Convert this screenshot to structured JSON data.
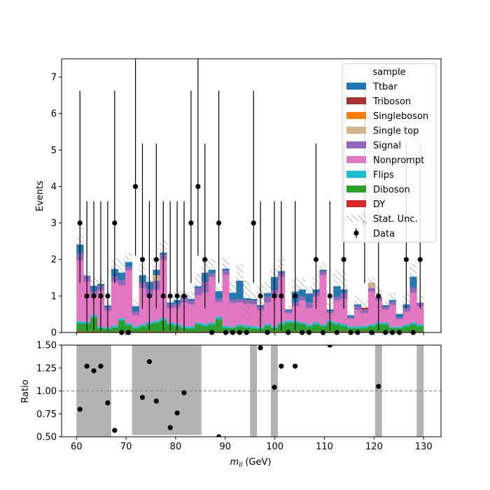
{
  "chart_data": {
    "type": "bar",
    "stacked": true,
    "bin_width": 1.4,
    "x_start": 60,
    "main": {
      "ylabel": "Events",
      "ylim": [
        0,
        7.5
      ],
      "yticks": [
        0,
        1,
        2,
        3,
        4,
        5,
        6,
        7
      ]
    },
    "ratio": {
      "ylabel": "Ratio",
      "ylim": [
        0.5,
        1.5
      ],
      "yticks": [
        "0.50",
        "0.75",
        "1.00",
        "1.25",
        "1.50"
      ],
      "reference_line": 1.0
    },
    "xlabel_main": "m",
    "xlabel_sub": "ll",
    "xlabel_unit": " (GeV)",
    "xlim": [
      57,
      133.5
    ],
    "xticks": [
      60,
      70,
      80,
      90,
      100,
      110,
      120,
      130
    ],
    "legend": {
      "title": "sample",
      "placement": "top-right",
      "entries": [
        {
          "label": "Ttbar",
          "color": "#1f77b4",
          "kind": "patch"
        },
        {
          "label": "Triboson",
          "color": "#a83232",
          "kind": "patch"
        },
        {
          "label": "Singleboson",
          "color": "#ff7f0e",
          "kind": "patch"
        },
        {
          "label": "Single top",
          "color": "#d2b48c",
          "kind": "patch"
        },
        {
          "label": "Signal",
          "color": "#9467bd",
          "kind": "patch"
        },
        {
          "label": "Nonprompt",
          "color": "#e377c2",
          "kind": "patch"
        },
        {
          "label": "Flips",
          "color": "#17becf",
          "kind": "patch"
        },
        {
          "label": "Diboson",
          "color": "#2ca02c",
          "kind": "patch"
        },
        {
          "label": "DY",
          "color": "#d62728",
          "kind": "patch"
        },
        {
          "label": "Stat. Unc.",
          "color": "#777777",
          "kind": "hatch"
        },
        {
          "label": "Data",
          "color": "#000000",
          "kind": "errorbar"
        }
      ]
    },
    "stack_order": [
      "DY",
      "Diboson",
      "Flips",
      "Nonprompt",
      "Signal",
      "Single top",
      "Singleboson",
      "Triboson",
      "Ttbar"
    ],
    "series": [
      {
        "name": "DY",
        "color": "#d62728",
        "values": [
          0.03,
          0.02,
          0.03,
          0.02,
          0.02,
          0.02,
          0.03,
          0.02,
          0.02,
          0.02,
          0.03,
          0.02,
          0.03,
          0.02,
          0.03,
          0.02,
          0.02,
          0.02,
          0.03,
          0.02,
          0.02,
          0.03,
          0.02,
          0.02,
          0.02,
          0.02,
          0.02,
          0.03,
          0.02,
          0.02,
          0.02,
          0.02,
          0.03,
          0.02,
          0.02,
          0.02,
          0.02,
          0.02,
          0.03,
          0.02,
          0.02,
          0.03,
          0.02,
          0.02,
          0.02,
          0.02,
          0.02,
          0.02,
          0.02,
          0.02
        ]
      },
      {
        "name": "Diboson",
        "color": "#2ca02c",
        "values": [
          0.22,
          0.22,
          0.38,
          0.1,
          0.08,
          0.12,
          0.3,
          0.18,
          0.1,
          0.15,
          0.2,
          0.25,
          0.3,
          0.2,
          0.15,
          0.1,
          0.1,
          0.2,
          0.15,
          0.2,
          0.35,
          0.1,
          0.1,
          0.15,
          0.12,
          0.1,
          0.08,
          0.15,
          0.1,
          0.2,
          0.25,
          0.25,
          0.2,
          0.15,
          0.2,
          0.15,
          0.25,
          0.2,
          0.15,
          0.1,
          0.1,
          0.1,
          0.15,
          0.2,
          0.2,
          0.1,
          0.1,
          0.15,
          0.2,
          0.15
        ]
      },
      {
        "name": "Flips",
        "color": "#17becf",
        "values": [
          0.06,
          0.05,
          0.07,
          0.04,
          0.04,
          0.05,
          0.06,
          0.05,
          0.05,
          0.05,
          0.06,
          0.05,
          0.06,
          0.05,
          0.06,
          0.05,
          0.05,
          0.05,
          0.06,
          0.05,
          0.06,
          0.05,
          0.04,
          0.05,
          0.05,
          0.05,
          0.05,
          0.05,
          0.05,
          0.06,
          0.06,
          0.05,
          0.05,
          0.05,
          0.06,
          0.05,
          0.06,
          0.05,
          0.05,
          0.05,
          0.05,
          0.05,
          0.05,
          0.05,
          0.05,
          0.04,
          0.04,
          0.05,
          0.06,
          0.05
        ]
      },
      {
        "name": "Nonprompt",
        "color": "#e377c2",
        "values": [
          1.65,
          1.1,
          0.55,
          1.0,
          0.45,
          1.2,
          0.9,
          1.45,
          0.3,
          1.0,
          0.7,
          0.85,
          1.6,
          0.4,
          0.45,
          0.65,
          0.6,
          0.75,
          0.85,
          1.25,
          0.4,
          1.4,
          0.65,
          0.6,
          0.6,
          0.6,
          0.45,
          0.6,
          0.85,
          1.25,
          0.2,
          0.4,
          0.6,
          0.45,
          0.7,
          1.35,
          0.2,
          0.6,
          0.7,
          0.2,
          0.45,
          0.35,
          0.9,
          0.6,
          0.35,
          0.6,
          0.2,
          0.35,
          0.8,
          0.5
        ]
      },
      {
        "name": "Signal",
        "color": "#9467bd",
        "values": [
          0.2,
          0.15,
          0.1,
          0.12,
          0.1,
          0.15,
          0.15,
          0.1,
          0.1,
          0.15,
          0.2,
          0.25,
          0.15,
          0.1,
          0.1,
          0.15,
          0.1,
          0.2,
          0.3,
          0.1,
          0.1,
          0.12,
          0.08,
          0.1,
          0.1,
          0.1,
          0.1,
          0.15,
          0.15,
          0.1,
          0.05,
          0.1,
          0.1,
          0.15,
          0.1,
          0.1,
          0.05,
          0.1,
          0.15,
          0.05,
          0.1,
          0.1,
          0.1,
          0.1,
          0.08,
          0.08,
          0.05,
          0.1,
          0.15,
          0.1
        ]
      },
      {
        "name": "Single top",
        "color": "#d2b48c",
        "values": [
          0,
          0,
          0,
          0,
          0,
          0,
          0,
          0,
          0,
          0,
          0,
          0.15,
          0,
          0,
          0,
          0,
          0,
          0,
          0,
          0,
          0,
          0,
          0,
          0,
          0,
          0,
          0,
          0,
          0,
          0,
          0,
          0,
          0,
          0,
          0,
          0,
          0,
          0,
          0,
          0,
          0,
          0,
          0.15,
          0,
          0,
          0,
          0,
          0,
          0,
          0
        ]
      },
      {
        "name": "Singleboson",
        "color": "#ff7f0e",
        "values": [
          0,
          0,
          0,
          0,
          0,
          0,
          0,
          0,
          0,
          0,
          0,
          0,
          0,
          0,
          0,
          0,
          0,
          0,
          0,
          0,
          0,
          0,
          0,
          0,
          0,
          0,
          0,
          0,
          0,
          0,
          0,
          0,
          0,
          0,
          0,
          0,
          0,
          0,
          0,
          0,
          0,
          0,
          0,
          0,
          0,
          0,
          0,
          0,
          0,
          0
        ]
      },
      {
        "name": "Triboson",
        "color": "#a83232",
        "values": [
          0,
          0,
          0,
          0,
          0,
          0,
          0,
          0,
          0,
          0,
          0,
          0,
          0,
          0,
          0,
          0,
          0,
          0,
          0,
          0,
          0,
          0,
          0,
          0,
          0,
          0,
          0,
          0,
          0,
          0,
          0,
          0,
          0,
          0,
          0,
          0,
          0,
          0,
          0,
          0,
          0,
          0.05,
          0,
          0,
          0,
          0,
          0,
          0,
          0,
          0
        ]
      },
      {
        "name": "Ttbar",
        "color": "#1f77b4",
        "values": [
          0.25,
          0.02,
          0.15,
          0.05,
          0.05,
          0.2,
          0.2,
          0.13,
          0.15,
          0.2,
          0.2,
          0.15,
          0.05,
          0.05,
          0.1,
          0.05,
          0.05,
          0.05,
          0.25,
          0.1,
          0.2,
          0.05,
          0.2,
          0.5,
          0.05,
          0.05,
          0.05,
          0.1,
          0.35,
          0.05,
          0.05,
          0.3,
          0.2,
          0.25,
          0.1,
          0.05,
          0.05,
          0.3,
          0.1,
          0.05,
          0.05,
          0.0,
          0.0,
          0.0,
          0.05,
          0.05,
          0.1,
          0.1,
          0.3,
          0.0
        ]
      }
    ],
    "stat_unc": [
      0.3,
      0.15,
      0.25,
      0.2,
      0.12,
      0.3,
      0.35,
      0.25,
      0.2,
      0.3,
      0.15,
      0.35,
      0.35,
      0.2,
      0.3,
      0.15,
      0.2,
      0.35,
      0.35,
      0.3,
      0.15,
      0.3,
      0.3,
      0.45,
      0.5,
      0.2,
      0.55,
      0.3,
      0.25,
      0.35,
      0.1,
      0.4,
      0.3,
      0.2,
      0.4,
      0.2,
      0.2,
      0.45,
      0.5,
      0.1,
      0.25,
      0.2,
      0.15,
      0.3,
      0.1,
      0.2,
      0.05,
      0.3,
      0.35,
      0.2
    ],
    "data_points": [
      {
        "x": 60.7,
        "y": 3
      },
      {
        "x": 62.1,
        "y": 1
      },
      {
        "x": 63.5,
        "y": 1
      },
      {
        "x": 64.9,
        "y": 1
      },
      {
        "x": 66.3,
        "y": 1
      },
      {
        "x": 67.7,
        "y": 3
      },
      {
        "x": 69.1,
        "y": 0
      },
      {
        "x": 70.5,
        "y": 0
      },
      {
        "x": 71.9,
        "y": 4
      },
      {
        "x": 73.3,
        "y": 2
      },
      {
        "x": 74.7,
        "y": 1
      },
      {
        "x": 76.1,
        "y": 2
      },
      {
        "x": 77.5,
        "y": 1
      },
      {
        "x": 78.9,
        "y": 1
      },
      {
        "x": 80.3,
        "y": 1
      },
      {
        "x": 81.7,
        "y": 1
      },
      {
        "x": 83.1,
        "y": 3
      },
      {
        "x": 84.5,
        "y": 4
      },
      {
        "x": 85.9,
        "y": 2
      },
      {
        "x": 87.3,
        "y": 0
      },
      {
        "x": 88.7,
        "y": 3
      },
      {
        "x": 90.1,
        "y": 0
      },
      {
        "x": 91.5,
        "y": 0
      },
      {
        "x": 92.9,
        "y": 0
      },
      {
        "x": 94.3,
        "y": 0
      },
      {
        "x": 95.7,
        "y": 3
      },
      {
        "x": 97.1,
        "y": 1
      },
      {
        "x": 98.5,
        "y": 0
      },
      {
        "x": 99.9,
        "y": 1
      },
      {
        "x": 101.3,
        "y": 1
      },
      {
        "x": 102.7,
        "y": 0
      },
      {
        "x": 104.1,
        "y": 1
      },
      {
        "x": 105.5,
        "y": 0
      },
      {
        "x": 106.9,
        "y": 0
      },
      {
        "x": 108.3,
        "y": 2
      },
      {
        "x": 109.7,
        "y": 0
      },
      {
        "x": 111.1,
        "y": 1
      },
      {
        "x": 112.5,
        "y": 0
      },
      {
        "x": 113.9,
        "y": 2
      },
      {
        "x": 115.3,
        "y": 0
      },
      {
        "x": 116.7,
        "y": 0
      },
      {
        "x": 118.1,
        "y": 3
      },
      {
        "x": 119.5,
        "y": 0
      },
      {
        "x": 120.9,
        "y": 1
      },
      {
        "x": 122.3,
        "y": 0
      },
      {
        "x": 123.7,
        "y": 0
      },
      {
        "x": 125.1,
        "y": 0
      },
      {
        "x": 126.5,
        "y": 2
      },
      {
        "x": 127.9,
        "y": 0
      },
      {
        "x": 129.3,
        "y": 2
      }
    ],
    "ratio_points": [
      {
        "x": 60.7,
        "y": 0.8
      },
      {
        "x": 62.1,
        "y": 1.27
      },
      {
        "x": 63.5,
        "y": 1.22
      },
      {
        "x": 64.9,
        "y": 1.27
      },
      {
        "x": 66.3,
        "y": 0.87
      },
      {
        "x": 67.7,
        "y": 0.57
      },
      {
        "x": 73.3,
        "y": 0.93
      },
      {
        "x": 74.7,
        "y": 1.32
      },
      {
        "x": 76.1,
        "y": 0.89
      },
      {
        "x": 78.9,
        "y": 0.6
      },
      {
        "x": 80.3,
        "y": 0.76
      },
      {
        "x": 81.7,
        "y": 0.98
      },
      {
        "x": 88.7,
        "y": 0.5
      },
      {
        "x": 97.1,
        "y": 1.47
      },
      {
        "x": 99.9,
        "y": 1.04
      },
      {
        "x": 101.3,
        "y": 1.27
      },
      {
        "x": 104.1,
        "y": 1.27
      },
      {
        "x": 111.1,
        "y": 1.5
      },
      {
        "x": 120.9,
        "y": 1.05
      }
    ],
    "ratio_bands": [
      {
        "x0": 60.0,
        "x1": 67.0,
        "lo": 0.5,
        "hi": 1.5
      },
      {
        "x0": 71.2,
        "x1": 85.2,
        "lo": 0.52,
        "hi": 1.5
      },
      {
        "x0": 95.0,
        "x1": 96.4,
        "lo": 0.5,
        "hi": 1.5
      },
      {
        "x0": 99.2,
        "x1": 100.6,
        "lo": 0.5,
        "hi": 1.5
      },
      {
        "x0": 120.2,
        "x1": 121.6,
        "lo": 0.5,
        "hi": 1.5
      },
      {
        "x0": 128.6,
        "x1": 130.0,
        "lo": 0.5,
        "hi": 1.5
      }
    ],
    "data_display_max": 7.5
  }
}
